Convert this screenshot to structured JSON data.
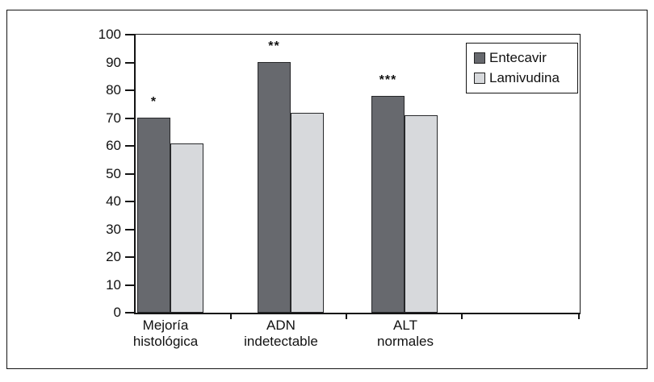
{
  "chart_data": {
    "type": "bar",
    "categories": [
      "Mejoría\nhistológica",
      "ADN\nindetectable",
      "ALT\nnormales"
    ],
    "series": [
      {
        "name": "Entecavir",
        "values": [
          70,
          90,
          78
        ],
        "color": "#67696e",
        "annotations": [
          "*",
          "**",
          "***"
        ]
      },
      {
        "name": "Lamivudina",
        "values": [
          61,
          72,
          71
        ],
        "color": "#d7d9dc",
        "annotations": [
          "",
          "",
          ""
        ]
      }
    ],
    "ylim": [
      0,
      100
    ],
    "yticks": [
      0,
      10,
      20,
      30,
      40,
      50,
      60,
      70,
      80,
      90,
      100
    ],
    "grid": false,
    "legend": {
      "position": "top-right",
      "entries": [
        "Entecavir",
        "Lamivudina"
      ]
    },
    "bar_border_color": "#27282a",
    "axis_color": "#141414",
    "annotation_note": "asterisks shown above Entecavir bars"
  }
}
